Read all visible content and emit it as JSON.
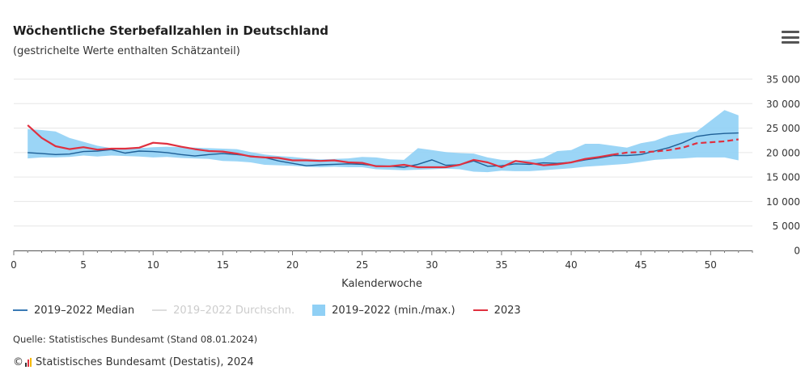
{
  "header": {
    "title": "Wöchentliche Sterbefallzahlen in Deutschland",
    "subtitle": "(gestrichelte Werte enthalten Schätzanteil)",
    "menu_icon": "hamburger-menu-icon"
  },
  "legend": {
    "items": [
      {
        "label": "2019–2022 Median",
        "color": "#3a7ab5",
        "type": "line",
        "active": true
      },
      {
        "label": "2019–2022 Durchschn.",
        "color": "#dddddd",
        "type": "line",
        "active": false
      },
      {
        "label": "2019–2022 (min./max.)",
        "color": "#90d0f5",
        "type": "box",
        "active": true
      },
      {
        "label": "2023",
        "color": "#e0303f",
        "type": "line",
        "active": true
      }
    ]
  },
  "footer": {
    "source": "Quelle: Statistisches Bundesamt (Stand 08.01.2024)",
    "copyright_symbol": "©",
    "copyright": "Statistisches Bundesamt (Destatis), 2024"
  },
  "chart_data": {
    "type": "line",
    "xlabel": "Kalenderwoche",
    "xlim": [
      0,
      53
    ],
    "ylim": [
      0,
      35000
    ],
    "x_ticks": [
      0,
      5,
      10,
      15,
      20,
      25,
      30,
      35,
      40,
      45,
      50
    ],
    "x_tick_labels": [
      "0",
      "5",
      "10",
      "15",
      "20",
      "25",
      "30",
      "35",
      "40",
      "45",
      "50"
    ],
    "y_ticks": [
      0,
      5000,
      10000,
      15000,
      20000,
      25000,
      30000,
      35000
    ],
    "y_tick_labels": [
      "0",
      "5 000",
      "10 000",
      "15 000",
      "20 000",
      "25 000",
      "30 000",
      "35 000"
    ],
    "grid": true,
    "weeks": [
      1,
      2,
      3,
      4,
      5,
      6,
      7,
      8,
      9,
      10,
      11,
      12,
      13,
      14,
      15,
      16,
      17,
      18,
      19,
      20,
      21,
      22,
      23,
      24,
      25,
      26,
      27,
      28,
      29,
      30,
      31,
      32,
      33,
      34,
      35,
      36,
      37,
      38,
      39,
      40,
      41,
      42,
      43,
      44,
      45,
      46,
      47,
      48,
      49,
      50,
      51,
      52
    ],
    "series": [
      {
        "name": "2019–2022 (min./max.)",
        "kind": "range",
        "min": [
          18800,
          19000,
          19000,
          19100,
          19400,
          19200,
          19400,
          19300,
          19200,
          19000,
          19100,
          18900,
          18800,
          18700,
          18300,
          18200,
          18000,
          17500,
          17400,
          17300,
          17100,
          17000,
          17100,
          17000,
          17000,
          16600,
          16500,
          16400,
          16500,
          16600,
          16700,
          16600,
          16100,
          16000,
          16300,
          16200,
          16200,
          16400,
          16600,
          16800,
          17100,
          17300,
          17500,
          17700,
          18100,
          18500,
          18700,
          18800,
          19000,
          19000,
          19000,
          18400
        ],
        "max": [
          24800,
          24600,
          24300,
          23000,
          22200,
          21400,
          20900,
          20700,
          20900,
          21100,
          21200,
          21100,
          21000,
          20900,
          20800,
          20700,
          20100,
          19600,
          19300,
          19100,
          18800,
          18600,
          18700,
          18800,
          19100,
          19000,
          18600,
          18500,
          20900,
          20500,
          20100,
          19900,
          19800,
          19000,
          18500,
          18400,
          18500,
          18900,
          20300,
          20500,
          21800,
          21800,
          21400,
          21000,
          21900,
          22400,
          23500,
          24000,
          24300,
          26500,
          28700,
          27600
        ]
      },
      {
        "name": "2019–2022 Median",
        "kind": "line",
        "values": [
          20000,
          19800,
          19600,
          19700,
          20200,
          20300,
          20600,
          19900,
          20300,
          20200,
          20000,
          19600,
          19300,
          19600,
          19800,
          19600,
          19300,
          19000,
          18300,
          17800,
          17300,
          17500,
          17600,
          17700,
          17600,
          17300,
          17200,
          17000,
          17600,
          18500,
          17400,
          17500,
          18300,
          17200,
          17300,
          17700,
          17600,
          17900,
          17800,
          18000,
          18500,
          18900,
          19400,
          19400,
          19600,
          20300,
          21000,
          22000,
          23300,
          23700,
          23900,
          24000
        ]
      },
      {
        "name": "2023",
        "kind": "line",
        "estimated_from_week": 43,
        "values": [
          25600,
          23000,
          21300,
          20700,
          21100,
          20600,
          20800,
          20800,
          21000,
          22000,
          21800,
          21200,
          20700,
          20300,
          20200,
          19800,
          19200,
          19000,
          18900,
          18400,
          18400,
          18300,
          18400,
          18000,
          17900,
          17200,
          17200,
          17500,
          17000,
          17000,
          17000,
          17500,
          18500,
          18000,
          17000,
          18300,
          17900,
          17400,
          17600,
          18000,
          18700,
          19100,
          19600,
          20000,
          20100,
          20200,
          20500,
          21000,
          21900,
          22100,
          22300,
          22700
        ]
      }
    ]
  }
}
